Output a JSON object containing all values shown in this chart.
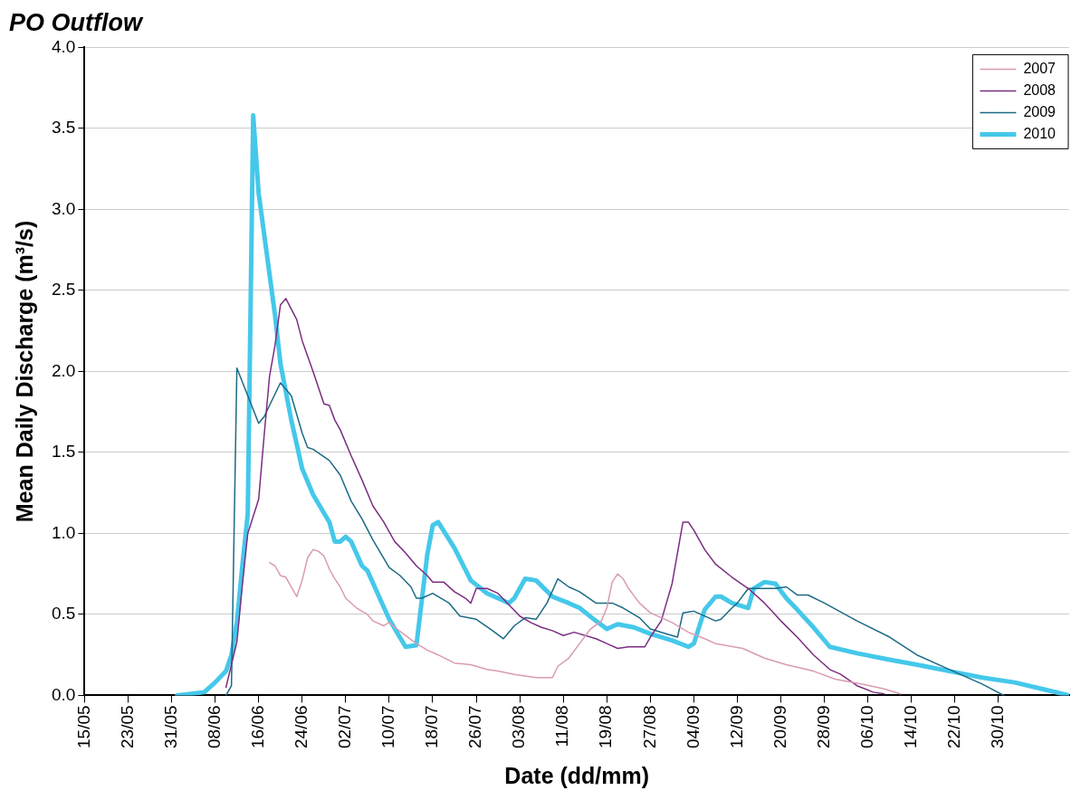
{
  "chart_data": {
    "type": "line",
    "title": "PO Outflow",
    "xlabel": "Date (dd/mm)",
    "ylabel": "Mean Daily Discharge (m³/s)",
    "xlim": [
      "--05-15",
      "--11-12"
    ],
    "xticks": [
      {
        "value": "--05-15",
        "label": "15/05"
      },
      {
        "value": "--05-23",
        "label": "23/05"
      },
      {
        "value": "--05-31",
        "label": "31/05"
      },
      {
        "value": "--06-08",
        "label": "08/06"
      },
      {
        "value": "--06-16",
        "label": "16/06"
      },
      {
        "value": "--06-24",
        "label": "24/06"
      },
      {
        "value": "--07-02",
        "label": "02/07"
      },
      {
        "value": "--07-10",
        "label": "10/07"
      },
      {
        "value": "--07-18",
        "label": "18/07"
      },
      {
        "value": "--07-26",
        "label": "26/07"
      },
      {
        "value": "--08-03",
        "label": "03/08"
      },
      {
        "value": "--08-11",
        "label": "11/08"
      },
      {
        "value": "--08-19",
        "label": "19/08"
      },
      {
        "value": "--08-27",
        "label": "27/08"
      },
      {
        "value": "--09-04",
        "label": "04/09"
      },
      {
        "value": "--09-12",
        "label": "12/09"
      },
      {
        "value": "--09-20",
        "label": "20/09"
      },
      {
        "value": "--09-28",
        "label": "28/09"
      },
      {
        "value": "--10-06",
        "label": "06/10"
      },
      {
        "value": "--10-14",
        "label": "14/10"
      },
      {
        "value": "--10-22",
        "label": "22/10"
      },
      {
        "value": "--10-30",
        "label": "30/10"
      }
    ],
    "ylim": [
      0,
      4
    ],
    "yticks": [
      {
        "value": 0,
        "label": "0.0"
      },
      {
        "value": 0.5,
        "label": "0.5"
      },
      {
        "value": 1,
        "label": "1.0"
      },
      {
        "value": 1.5,
        "label": "1.5"
      },
      {
        "value": 2,
        "label": "2.0"
      },
      {
        "value": 2.5,
        "label": "2.5"
      },
      {
        "value": 3,
        "label": "3.0"
      },
      {
        "value": 3.5,
        "label": "3.5"
      },
      {
        "value": 4,
        "label": "4.0"
      }
    ],
    "grid": "y",
    "legend": "top right",
    "marker": "none",
    "line_style": "solid",
    "series": [
      {
        "name": "2007",
        "color": "#d99bb0",
        "x": [
          "--06-18",
          "--06-19",
          "--06-20",
          "--06-21",
          "--06-22",
          "--06-23",
          "--06-24",
          "--06-25",
          "--06-26",
          "--06-27",
          "--06-28",
          "--06-29",
          "--06-30",
          "--07-01",
          "--07-02",
          "--07-04",
          "--07-06",
          "--07-07",
          "--07-09",
          "--07-10",
          "--07-11",
          "--07-13",
          "--07-15",
          "--07-17",
          "--07-19",
          "--07-22",
          "--07-25",
          "--07-28",
          "--07-30",
          "--08-02",
          "--08-04",
          "--08-06",
          "--08-09",
          "--08-10",
          "--08-12",
          "--08-14",
          "--08-16",
          "--08-18",
          "--08-19",
          "--08-20",
          "--08-21",
          "--08-22",
          "--08-23",
          "--08-25",
          "--08-27",
          "--08-31",
          "--09-03",
          "--09-06",
          "--09-08",
          "--09-13",
          "--09-17",
          "--09-21",
          "--09-26",
          "--09-30",
          "--10-05",
          "--10-09",
          "--10-12"
        ],
        "values": [
          0.82,
          0.8,
          0.74,
          0.73,
          0.67,
          0.61,
          0.71,
          0.85,
          0.9,
          0.89,
          0.86,
          0.78,
          0.72,
          0.67,
          0.6,
          0.54,
          0.5,
          0.46,
          0.43,
          0.45,
          0.42,
          0.37,
          0.32,
          0.28,
          0.25,
          0.2,
          0.19,
          0.16,
          0.15,
          0.13,
          0.12,
          0.11,
          0.11,
          0.18,
          0.23,
          0.32,
          0.41,
          0.46,
          0.54,
          0.7,
          0.75,
          0.72,
          0.66,
          0.57,
          0.51,
          0.45,
          0.39,
          0.35,
          0.32,
          0.29,
          0.23,
          0.19,
          0.15,
          0.1,
          0.07,
          0.04,
          0.01
        ]
      },
      {
        "name": "2008",
        "color": "#7b2d82",
        "x": [
          "--06-10",
          "--06-12",
          "--06-13",
          "--06-14",
          "--06-16",
          "--06-17",
          "--06-18",
          "--06-19",
          "--06-20",
          "--06-21",
          "--06-23",
          "--06-24",
          "--06-26",
          "--06-27",
          "--06-28",
          "--06-29",
          "--06-30",
          "--07-01",
          "--07-03",
          "--07-05",
          "--07-07",
          "--07-09",
          "--07-11",
          "--07-13",
          "--07-15",
          "--07-17",
          "--07-18",
          "--07-20",
          "--07-22",
          "--07-24",
          "--07-25",
          "--07-26",
          "--07-28",
          "--07-30",
          "--08-01",
          "--08-03",
          "--08-05",
          "--08-07",
          "--08-09",
          "--08-11",
          "--08-13",
          "--08-17",
          "--08-19",
          "--08-21",
          "--08-23",
          "--08-26",
          "--08-27",
          "--08-29",
          "--08-31",
          "--09-02",
          "--09-03",
          "--09-04",
          "--09-06",
          "--09-08",
          "--09-11",
          "--09-14",
          "--09-17",
          "--09-20",
          "--09-23",
          "--09-26",
          "--09-29",
          "--10-01",
          "--10-04",
          "--10-07",
          "--10-09"
        ],
        "values": [
          0.05,
          0.33,
          0.68,
          1.0,
          1.21,
          1.6,
          1.97,
          2.16,
          2.41,
          2.45,
          2.32,
          2.19,
          2.0,
          1.9,
          1.8,
          1.79,
          1.7,
          1.64,
          1.48,
          1.33,
          1.17,
          1.07,
          0.95,
          0.88,
          0.8,
          0.74,
          0.7,
          0.7,
          0.64,
          0.6,
          0.57,
          0.66,
          0.66,
          0.63,
          0.56,
          0.49,
          0.45,
          0.42,
          0.4,
          0.37,
          0.39,
          0.35,
          0.32,
          0.29,
          0.3,
          0.3,
          0.36,
          0.46,
          0.69,
          1.07,
          1.07,
          1.02,
          0.9,
          0.81,
          0.73,
          0.66,
          0.57,
          0.46,
          0.36,
          0.25,
          0.16,
          0.13,
          0.06,
          0.02,
          0.01
        ]
      },
      {
        "name": "2009",
        "color": "#1b6a84",
        "x": [
          "--06-10",
          "--06-11",
          "--06-12",
          "--06-16",
          "--06-17",
          "--06-18",
          "--06-20",
          "--06-22",
          "--06-24",
          "--06-25",
          "--06-26",
          "--06-29",
          "--07-01",
          "--07-03",
          "--07-05",
          "--07-07",
          "--07-10",
          "--07-12",
          "--07-14",
          "--07-15",
          "--07-16",
          "--07-18",
          "--07-21",
          "--07-23",
          "--07-26",
          "--07-29",
          "--07-31",
          "--08-02",
          "--08-04",
          "--08-06",
          "--08-08",
          "--08-10",
          "--08-12",
          "--08-14",
          "--08-17",
          "--08-20",
          "--08-22",
          "--08-25",
          "--08-27",
          "--08-30",
          "--09-01",
          "--09-02",
          "--09-04",
          "--09-08",
          "--09-09",
          "--09-11",
          "--09-12",
          "--09-14",
          "--09-19",
          "--09-21",
          "--09-23",
          "--09-25",
          "--09-28",
          "--10-04",
          "--10-10",
          "--10-15",
          "--10-21",
          "--10-27",
          "--10-31"
        ],
        "values": [
          0.0,
          0.06,
          2.02,
          1.68,
          1.72,
          1.79,
          1.93,
          1.85,
          1.62,
          1.53,
          1.52,
          1.45,
          1.36,
          1.2,
          1.09,
          0.96,
          0.79,
          0.74,
          0.67,
          0.6,
          0.6,
          0.63,
          0.57,
          0.49,
          0.47,
          0.4,
          0.35,
          0.43,
          0.48,
          0.47,
          0.57,
          0.72,
          0.67,
          0.64,
          0.57,
          0.57,
          0.54,
          0.48,
          0.41,
          0.38,
          0.36,
          0.51,
          0.52,
          0.46,
          0.47,
          0.54,
          0.57,
          0.66,
          0.66,
          0.67,
          0.62,
          0.62,
          0.57,
          0.46,
          0.36,
          0.25,
          0.16,
          0.07,
          0.0
        ]
      },
      {
        "name": "2010",
        "color": "#45c8ea",
        "x": [
          "--06-01",
          "--06-06",
          "--06-08",
          "--06-10",
          "--06-11",
          "--06-12",
          "--06-13",
          "--06-14",
          "--06-15",
          "--06-16",
          "--06-17",
          "--06-18",
          "--06-19",
          "--06-20",
          "--06-22",
          "--06-24",
          "--06-26",
          "--06-29",
          "--06-30",
          "--07-01",
          "--07-02",
          "--07-03",
          "--07-05",
          "--07-06",
          "--07-08",
          "--07-10",
          "--07-13",
          "--07-15",
          "--07-17",
          "--07-18",
          "--07-19",
          "--07-22",
          "--07-25",
          "--07-28",
          "--07-30",
          "--08-01",
          "--08-02",
          "--08-04",
          "--08-06",
          "--08-09",
          "--08-12",
          "--08-14",
          "--08-17",
          "--08-19",
          "--08-21",
          "--08-24",
          "--08-27",
          "--08-31",
          "--09-03",
          "--09-04",
          "--09-06",
          "--09-08",
          "--09-09",
          "--09-11",
          "--09-14",
          "--09-15",
          "--09-17",
          "--09-19",
          "--09-21",
          "--09-23",
          "--09-26",
          "--09-29",
          "--10-04",
          "--10-10",
          "--10-15",
          "--10-21",
          "--10-27",
          "--11-02",
          "--11-07",
          "--11-12"
        ],
        "values": [
          0.0,
          0.02,
          0.08,
          0.15,
          0.25,
          0.45,
          0.8,
          1.12,
          3.58,
          3.1,
          2.85,
          2.6,
          2.35,
          2.05,
          1.7,
          1.4,
          1.24,
          1.07,
          0.95,
          0.95,
          0.98,
          0.95,
          0.8,
          0.77,
          0.62,
          0.47,
          0.3,
          0.31,
          0.87,
          1.05,
          1.07,
          0.91,
          0.71,
          0.63,
          0.6,
          0.57,
          0.6,
          0.72,
          0.71,
          0.61,
          0.57,
          0.54,
          0.46,
          0.41,
          0.44,
          0.42,
          0.38,
          0.34,
          0.3,
          0.32,
          0.53,
          0.61,
          0.61,
          0.57,
          0.54,
          0.66,
          0.7,
          0.69,
          0.6,
          0.53,
          0.42,
          0.3,
          0.26,
          0.22,
          0.19,
          0.15,
          0.11,
          0.08,
          0.04,
          0.0
        ]
      }
    ]
  }
}
